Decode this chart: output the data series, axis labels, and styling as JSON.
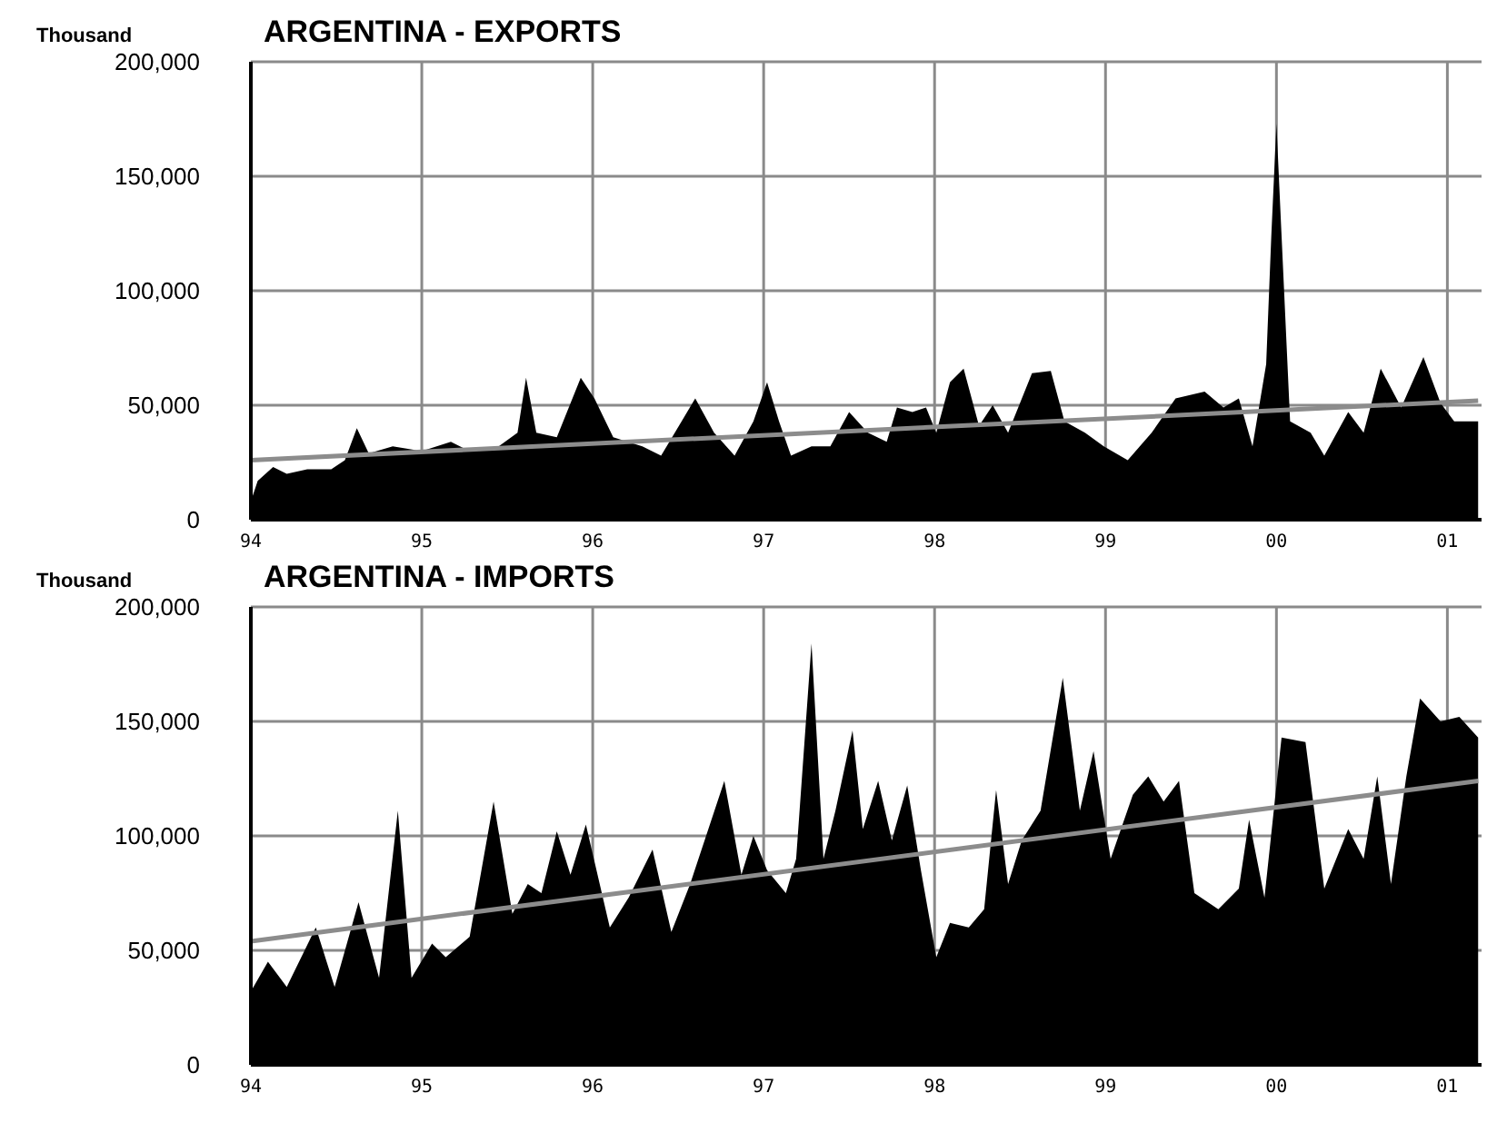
{
  "chart_data": [
    {
      "type": "area",
      "title": "ARGENTINA - EXPORTS",
      "ylabel": "Thousand",
      "xlim": [
        1994,
        2001.2
      ],
      "ylim": [
        0,
        200000
      ],
      "yticks": [
        0,
        {
          "value": 50000,
          "label": "50,000"
        },
        {
          "value": 100000,
          "label": "100,000"
        },
        {
          "value": 150000,
          "label": "150,000"
        },
        {
          "value": 200000,
          "label": "200,000"
        }
      ],
      "xticks": [
        {
          "value": 1994,
          "label": "94"
        },
        {
          "value": 1995,
          "label": "95"
        },
        {
          "value": 1996,
          "label": "96"
        },
        {
          "value": 1997,
          "label": "97"
        },
        {
          "value": 1998,
          "label": "98"
        },
        {
          "value": 1999,
          "label": "99"
        },
        {
          "value": 2000,
          "label": "00"
        },
        {
          "value": 2001,
          "label": "01"
        }
      ],
      "grid": true,
      "series": [
        {
          "color": "#000000",
          "x": [
            1994.0,
            1994.04,
            1994.13,
            1994.21,
            1994.33,
            1994.47,
            1994.55,
            1994.62,
            1994.69,
            1994.83,
            1995.0,
            1995.17,
            1995.28,
            1995.45,
            1995.56,
            1995.61,
            1995.67,
            1995.79,
            1995.93,
            1996.01,
            1996.12,
            1996.29,
            1996.4,
            1996.52,
            1996.6,
            1996.71,
            1996.83,
            1996.94,
            1997.02,
            1997.09,
            1997.16,
            1997.28,
            1997.39,
            1997.5,
            1997.61,
            1997.72,
            1997.78,
            1997.87,
            1997.95,
            1998.01,
            1998.09,
            1998.17,
            1998.26,
            1998.34,
            1998.43,
            1998.57,
            1998.68,
            1998.76,
            1998.88,
            1998.99,
            1999.13,
            1999.27,
            1999.41,
            1999.58,
            1999.69,
            1999.78,
            1999.86,
            1999.94,
            1999.97,
            2000.0,
            2000.03,
            2000.08,
            2000.2,
            2000.28,
            2000.42,
            2000.51,
            2000.61,
            2000.73,
            2000.86,
            2000.96,
            2001.04,
            2001.18
          ],
          "values": [
            8000,
            17000,
            23000,
            20000,
            22000,
            22000,
            26000,
            40000,
            29000,
            32000,
            30000,
            34000,
            30000,
            32000,
            38000,
            62000,
            38000,
            36000,
            62000,
            53000,
            36000,
            32000,
            28000,
            43000,
            53000,
            38000,
            28000,
            43000,
            60000,
            43000,
            28000,
            32000,
            32000,
            47000,
            38000,
            34000,
            49000,
            47000,
            49000,
            38000,
            60000,
            66000,
            41000,
            50000,
            38000,
            64000,
            65000,
            43000,
            38000,
            32000,
            26000,
            38000,
            53000,
            56000,
            49000,
            53000,
            32000,
            68000,
            124000,
            173000,
            124000,
            43000,
            38000,
            28000,
            47000,
            38000,
            66000,
            49000,
            71000,
            51000,
            43000,
            43000
          ]
        },
        {
          "type": "line",
          "color": "#8c8c8c",
          "x": [
            1994,
            2001.18
          ],
          "values": [
            26000,
            52000
          ]
        }
      ]
    },
    {
      "type": "area",
      "title": "ARGENTINA - IMPORTS",
      "ylabel": "Thousand",
      "xlim": [
        1994,
        2001.2
      ],
      "ylim": [
        0,
        200000
      ],
      "yticks": [
        0,
        {
          "value": 50000,
          "label": "50,000"
        },
        {
          "value": 100000,
          "label": "100,000"
        },
        {
          "value": 150000,
          "label": "150,000"
        },
        {
          "value": 200000,
          "label": "200,000"
        }
      ],
      "xticks": [
        {
          "value": 1994,
          "label": "94"
        },
        {
          "value": 1995,
          "label": "95"
        },
        {
          "value": 1996,
          "label": "96"
        },
        {
          "value": 1997,
          "label": "97"
        },
        {
          "value": 1998,
          "label": "98"
        },
        {
          "value": 1999,
          "label": "99"
        },
        {
          "value": 2000,
          "label": "00"
        },
        {
          "value": 2001,
          "label": "01"
        }
      ],
      "grid": true,
      "series": [
        {
          "color": "#000000",
          "x": [
            1994.0,
            1994.1,
            1994.21,
            1994.38,
            1994.49,
            1994.63,
            1994.75,
            1994.86,
            1994.94,
            1995.06,
            1995.14,
            1995.28,
            1995.42,
            1995.53,
            1995.62,
            1995.7,
            1995.79,
            1995.87,
            1995.96,
            1996.1,
            1996.21,
            1996.35,
            1996.46,
            1996.57,
            1996.77,
            1996.87,
            1996.94,
            1997.02,
            1997.13,
            1997.19,
            1997.28,
            1997.35,
            1997.42,
            1997.52,
            1997.58,
            1997.67,
            1997.75,
            1997.84,
            1997.92,
            1998.01,
            1998.09,
            1998.2,
            1998.29,
            1998.36,
            1998.43,
            1998.51,
            1998.62,
            1998.75,
            1998.85,
            1998.93,
            1999.03,
            1999.16,
            1999.25,
            1999.34,
            1999.43,
            1999.52,
            1999.66,
            1999.78,
            1999.84,
            1999.93,
            2000.03,
            2000.17,
            2000.28,
            2000.42,
            2000.51,
            2000.59,
            2000.67,
            2000.76,
            2000.84,
            2000.96,
            2001.07,
            2001.18
          ],
          "values": [
            32000,
            45000,
            34000,
            60000,
            34000,
            71000,
            38000,
            111000,
            38000,
            53000,
            47000,
            56000,
            115000,
            66000,
            79000,
            75000,
            102000,
            83000,
            105000,
            60000,
            73000,
            94000,
            58000,
            79000,
            124000,
            83000,
            100000,
            85000,
            75000,
            90000,
            184000,
            90000,
            111000,
            146000,
            103000,
            124000,
            98000,
            122000,
            85000,
            47000,
            62000,
            60000,
            68000,
            120000,
            79000,
            98000,
            111000,
            169000,
            111000,
            137000,
            90000,
            118000,
            126000,
            115000,
            124000,
            75000,
            68000,
            77000,
            107000,
            73000,
            143000,
            141000,
            77000,
            103000,
            90000,
            126000,
            79000,
            126000,
            160000,
            150000,
            152000,
            143000
          ]
        },
        {
          "type": "line",
          "color": "#8c8c8c",
          "x": [
            1994,
            2001.18
          ],
          "values": [
            54000,
            124000
          ]
        }
      ]
    }
  ]
}
